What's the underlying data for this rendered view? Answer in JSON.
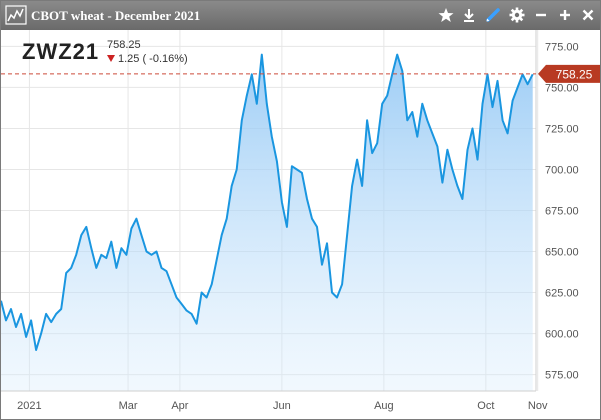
{
  "window": {
    "title": "CBOT wheat - December 2021",
    "buttons": [
      "star-icon",
      "download-icon",
      "pencil-icon",
      "gear-icon",
      "minimize-icon",
      "maximize-icon",
      "close-icon"
    ]
  },
  "quote": {
    "symbol": "ZWZ21",
    "last": "758.25",
    "change": "1.25 ( -0.16%)",
    "change_direction": "down"
  },
  "colors": {
    "line": "#1a96e0",
    "price_line": "#cc4b3a",
    "price_tag": "#b83a22",
    "titlebar": "#7a7a7a"
  },
  "chart_data": {
    "type": "area",
    "title": "",
    "xlabel": "",
    "ylabel": "",
    "ylim": [
      565,
      785
    ],
    "y_ticks": [
      575,
      600,
      625,
      650,
      675,
      700,
      725,
      750,
      775
    ],
    "y_tick_labels": [
      "575.00",
      "600.00",
      "625.00",
      "650.00",
      "675.00",
      "700.00",
      "725.00",
      "750.00",
      "775.00"
    ],
    "x_tick_labels": [
      "2021",
      "Mar",
      "Apr",
      "Jun",
      "Aug",
      "Oct",
      "Nov"
    ],
    "x_ticks": [
      "2021-01-01",
      "2021-03-01",
      "2021-04-01",
      "2021-06-01",
      "2021-08-01",
      "2021-10-01",
      "2021-11-01"
    ],
    "xlim": [
      "2020-12-15",
      "2021-10-31"
    ],
    "grid": true,
    "current_price": 758.25,
    "current_price_label": "758.25",
    "series": [
      {
        "x": [
          "2020-12-15",
          "2020-12-18",
          "2020-12-21",
          "2020-12-24",
          "2020-12-27",
          "2020-12-30",
          "2021-01-02",
          "2021-01-05",
          "2021-01-08",
          "2021-01-11",
          "2021-01-14",
          "2021-01-17",
          "2021-01-20",
          "2021-01-23",
          "2021-01-26",
          "2021-01-29",
          "2021-02-01",
          "2021-02-04",
          "2021-02-07",
          "2021-02-10",
          "2021-02-13",
          "2021-02-16",
          "2021-02-19",
          "2021-02-22",
          "2021-02-25",
          "2021-02-28",
          "2021-03-03",
          "2021-03-06",
          "2021-03-09",
          "2021-03-12",
          "2021-03-15",
          "2021-03-18",
          "2021-03-21",
          "2021-03-24",
          "2021-03-27",
          "2021-03-30",
          "2021-04-02",
          "2021-04-05",
          "2021-04-08",
          "2021-04-11",
          "2021-04-14",
          "2021-04-17",
          "2021-04-20",
          "2021-04-23",
          "2021-04-26",
          "2021-04-29",
          "2021-05-02",
          "2021-05-05",
          "2021-05-08",
          "2021-05-11",
          "2021-05-14",
          "2021-05-17",
          "2021-05-20",
          "2021-05-23",
          "2021-05-26",
          "2021-05-29",
          "2021-06-01",
          "2021-06-04",
          "2021-06-07",
          "2021-06-10",
          "2021-06-13",
          "2021-06-16",
          "2021-06-19",
          "2021-06-22",
          "2021-06-25",
          "2021-06-28",
          "2021-07-01",
          "2021-07-04",
          "2021-07-07",
          "2021-07-10",
          "2021-07-13",
          "2021-07-16",
          "2021-07-19",
          "2021-07-22",
          "2021-07-25",
          "2021-07-28",
          "2021-07-31",
          "2021-08-03",
          "2021-08-06",
          "2021-08-09",
          "2021-08-12",
          "2021-08-15",
          "2021-08-18",
          "2021-08-21",
          "2021-08-24",
          "2021-08-27",
          "2021-08-30",
          "2021-09-02",
          "2021-09-05",
          "2021-09-08",
          "2021-09-11",
          "2021-09-14",
          "2021-09-17",
          "2021-09-20",
          "2021-09-23",
          "2021-09-26",
          "2021-09-29",
          "2021-10-02",
          "2021-10-05",
          "2021-10-08",
          "2021-10-11",
          "2021-10-14",
          "2021-10-17",
          "2021-10-20",
          "2021-10-23",
          "2021-10-26",
          "2021-10-29"
        ],
        "y": [
          620,
          608,
          615,
          604,
          612,
          598,
          608,
          590,
          600,
          612,
          607,
          612,
          615,
          637,
          640,
          648,
          660,
          665,
          652,
          640,
          648,
          646,
          656,
          640,
          652,
          648,
          664,
          670,
          660,
          650,
          648,
          650,
          640,
          638,
          630,
          622,
          618,
          614,
          612,
          606,
          625,
          622,
          630,
          645,
          660,
          670,
          690,
          700,
          730,
          745,
          758,
          740,
          770,
          740,
          720,
          705,
          680,
          665,
          702,
          700,
          698,
          682,
          670,
          665,
          642,
          655,
          625,
          622,
          630,
          660,
          690,
          706,
          690,
          730,
          710,
          716,
          740,
          745,
          758,
          770,
          760,
          730,
          735,
          720,
          740,
          730,
          722,
          714,
          692,
          712,
          700,
          690,
          682,
          712,
          725,
          706,
          740,
          758,
          738,
          754,
          730,
          722,
          742,
          750,
          758,
          752,
          758
        ]
      }
    ]
  }
}
